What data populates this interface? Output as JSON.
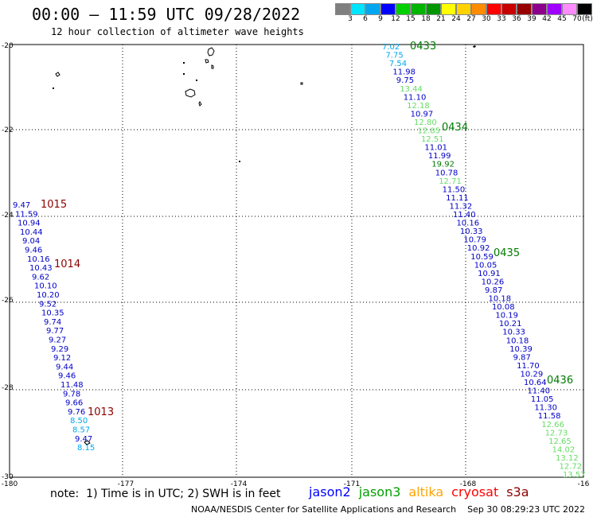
{
  "header": {
    "title": "00:00 – 11:59 UTC 09/28/2022",
    "subtitle": "12 hour collection of altimeter wave heights"
  },
  "legend": {
    "colors": [
      "#7f7f7f",
      "#00e5ff",
      "#00a7f0",
      "#0000ff",
      "#00d000",
      "#00b400",
      "#009600",
      "#ffff00",
      "#ffd200",
      "#ff8c00",
      "#ff0000",
      "#c80000",
      "#960000",
      "#8c008c",
      "#a000ff",
      "#ff8cff",
      "#000000"
    ],
    "labels": [
      "3",
      "6",
      "9",
      "12",
      "15",
      "18",
      "21",
      "24",
      "27",
      "30",
      "33",
      "36",
      "39",
      "42",
      "45",
      "70",
      "(ft)"
    ]
  },
  "axes": {
    "lat_labels": [
      "-20",
      "-22",
      "-24",
      "-26",
      "-28",
      "-30"
    ],
    "lon_labels": [
      "-180",
      "-177",
      "-174",
      "-171",
      "-168",
      "-16"
    ]
  },
  "tracks": {
    "west": {
      "points": [
        {
          "v": "9.47",
          "c": "#0000c8"
        },
        {
          "v": "11.59",
          "c": "#0000c8"
        },
        {
          "v": "10.94",
          "c": "#0000c8"
        },
        {
          "v": "10.44",
          "c": "#0000c8"
        },
        {
          "v": "9.04",
          "c": "#0000c8"
        },
        {
          "v": "9.46",
          "c": "#0000c8"
        },
        {
          "v": "10.16",
          "c": "#0000c8"
        },
        {
          "v": "10.43",
          "c": "#0000c8"
        },
        {
          "v": "9.62",
          "c": "#0000c8"
        },
        {
          "v": "10.10",
          "c": "#0000c8"
        },
        {
          "v": "10.20",
          "c": "#0000c8"
        },
        {
          "v": "9.52",
          "c": "#0000c8"
        },
        {
          "v": "10.35",
          "c": "#0000c8"
        },
        {
          "v": "9.74",
          "c": "#0000c8"
        },
        {
          "v": "9.77",
          "c": "#0000c8"
        },
        {
          "v": "9.27",
          "c": "#0000c8"
        },
        {
          "v": "9.29",
          "c": "#0000c8"
        },
        {
          "v": "9.12",
          "c": "#0000c8"
        },
        {
          "v": "9.44",
          "c": "#0000c8"
        },
        {
          "v": "9.46",
          "c": "#0000c8"
        },
        {
          "v": "11.48",
          "c": "#0000c8"
        },
        {
          "v": "9.78",
          "c": "#0000c8"
        },
        {
          "v": "9.66",
          "c": "#0000c8"
        },
        {
          "v": "9.76",
          "c": "#0000c8"
        },
        {
          "v": "8.50",
          "c": "#00a7f0"
        },
        {
          "v": "8.57",
          "c": "#00a7f0"
        },
        {
          "v": "9.47",
          "c": "#0000c8"
        },
        {
          "v": "8.15",
          "c": "#00a7f0"
        }
      ],
      "times": [
        "1015",
        "1014",
        "1013"
      ],
      "time_color": "#8b0000"
    },
    "east": {
      "points": [
        {
          "v": "7.02",
          "c": "#00a7f0"
        },
        {
          "v": "7.75",
          "c": "#00a7f0"
        },
        {
          "v": "7.54",
          "c": "#00a7f0"
        },
        {
          "v": "11.98",
          "c": "#0000c8"
        },
        {
          "v": "9.75",
          "c": "#0000c8"
        },
        {
          "v": "13.44",
          "c": "#66dd66"
        },
        {
          "v": "11.10",
          "c": "#0000c8"
        },
        {
          "v": "12.18",
          "c": "#66dd66"
        },
        {
          "v": "10.97",
          "c": "#0000c8"
        },
        {
          "v": "12.80",
          "c": "#66dd66"
        },
        {
          "v": "12.85",
          "c": "#66dd66"
        },
        {
          "v": "12.51",
          "c": "#66dd66"
        },
        {
          "v": "11.01",
          "c": "#0000c8"
        },
        {
          "v": "11.99",
          "c": "#0000c8"
        },
        {
          "v": "19.92",
          "c": "#007a00"
        },
        {
          "v": "10.78",
          "c": "#0000c8"
        },
        {
          "v": "12.71",
          "c": "#66dd66"
        },
        {
          "v": "11.50",
          "c": "#0000c8"
        },
        {
          "v": "11.11",
          "c": "#0000c8"
        },
        {
          "v": "11.32",
          "c": "#0000c8"
        },
        {
          "v": "11.40",
          "c": "#0000c8"
        },
        {
          "v": "10.16",
          "c": "#0000c8"
        },
        {
          "v": "10.33",
          "c": "#0000c8"
        },
        {
          "v": "10.79",
          "c": "#0000c8"
        },
        {
          "v": "10.92",
          "c": "#0000c8"
        },
        {
          "v": "10.59",
          "c": "#0000c8"
        },
        {
          "v": "10.05",
          "c": "#0000c8"
        },
        {
          "v": "10.91",
          "c": "#0000c8"
        },
        {
          "v": "10.26",
          "c": "#0000c8"
        },
        {
          "v": "9.87",
          "c": "#0000c8"
        },
        {
          "v": "10.18",
          "c": "#0000c8"
        },
        {
          "v": "10.08",
          "c": "#0000c8"
        },
        {
          "v": "10.19",
          "c": "#0000c8"
        },
        {
          "v": "10.21",
          "c": "#0000c8"
        },
        {
          "v": "10.33",
          "c": "#0000c8"
        },
        {
          "v": "10.18",
          "c": "#0000c8"
        },
        {
          "v": "10.39",
          "c": "#0000c8"
        },
        {
          "v": "9.87",
          "c": "#0000c8"
        },
        {
          "v": "11.70",
          "c": "#0000c8"
        },
        {
          "v": "10.29",
          "c": "#0000c8"
        },
        {
          "v": "10.64",
          "c": "#0000c8"
        },
        {
          "v": "11.40",
          "c": "#0000c8"
        },
        {
          "v": "11.05",
          "c": "#0000c8"
        },
        {
          "v": "11.30",
          "c": "#0000c8"
        },
        {
          "v": "11.58",
          "c": "#0000c8"
        },
        {
          "v": "12.66",
          "c": "#66dd66"
        },
        {
          "v": "12.73",
          "c": "#66dd66"
        },
        {
          "v": "12.65",
          "c": "#66dd66"
        },
        {
          "v": "14.02",
          "c": "#66dd66"
        },
        {
          "v": "13.12",
          "c": "#66dd66"
        },
        {
          "v": "12.72",
          "c": "#66dd66"
        },
        {
          "v": "13.57",
          "c": "#66dd66"
        }
      ],
      "times": [
        "0433",
        "0434",
        "0435",
        "0436"
      ],
      "time_color": "#007a00"
    }
  },
  "footer": {
    "note": "note:  1) Time is in UTC; 2) SWH is in feet",
    "satellites": [
      {
        "name": "jason2",
        "color": "#0000ff"
      },
      {
        "name": "jason3",
        "color": "#00a000"
      },
      {
        "name": "altika",
        "color": "#ffa500"
      },
      {
        "name": "cryosat",
        "color": "#ff0000"
      },
      {
        "name": "s3a",
        "color": "#8b0000"
      }
    ],
    "credit": "NOAA/NESDIS Center for Satellite Applications and Research    Sep 30 08:29:23 UTC 2022"
  }
}
